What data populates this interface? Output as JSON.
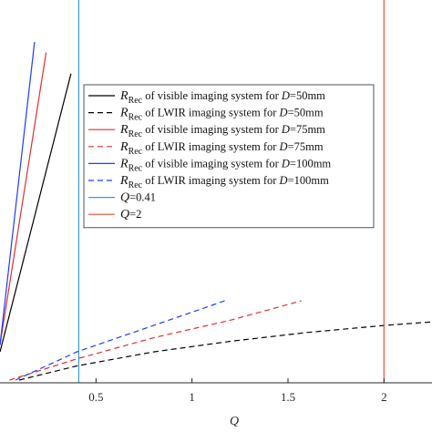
{
  "chart_data": {
    "type": "line",
    "title": "",
    "xlabel": "Q",
    "ylabel": "",
    "xlim": [
      0,
      2.25
    ],
    "x_ticks": [
      "0.5",
      "1",
      "1.5",
      "2"
    ],
    "x_tick_values": [
      0.5,
      1,
      1.5,
      2
    ],
    "grid": false,
    "legend_placement": "top-right",
    "series": [
      {
        "name": "R_Rec of visible imaging system for D=50mm",
        "legend": {
          "sym": "R",
          "sub": "Rec",
          "text": " of visible imaging system for ",
          "var": "D",
          "val": "=50mm"
        },
        "color": "#000000",
        "dash": "solid",
        "points": [
          [
            0.0,
            0.08
          ],
          [
            0.37,
            0.87
          ]
        ]
      },
      {
        "name": "R_Rec of LWIR imaging system for D=50mm",
        "legend": {
          "sym": "R",
          "sub": "Rec",
          "text": " of LWIR imaging system for ",
          "var": "D",
          "val": "=50mm"
        },
        "color": "#000000",
        "dash": "dashed",
        "points": [
          [
            0.1,
            0.0
          ],
          [
            0.4,
            0.04
          ],
          [
            0.8,
            0.08
          ],
          [
            1.2,
            0.11
          ],
          [
            1.6,
            0.135
          ],
          [
            2.0,
            0.155
          ],
          [
            2.25,
            0.165
          ]
        ]
      },
      {
        "name": "R_Rec of visible imaging system for D=75mm",
        "legend": {
          "sym": "R",
          "sub": "Rec",
          "text": " of visible imaging system for ",
          "var": "D",
          "val": "=75mm"
        },
        "color": "#e0302c",
        "dash": "solid",
        "points": [
          [
            0.0,
            0.1
          ],
          [
            0.24,
            0.93
          ]
        ]
      },
      {
        "name": "R_Rec of LWIR imaging system for D=75mm",
        "legend": {
          "sym": "R",
          "sub": "Rec",
          "text": " of LWIR imaging system for ",
          "var": "D",
          "val": "=75mm"
        },
        "color": "#e0302c",
        "dash": "dashed",
        "points": [
          [
            0.05,
            0.0
          ],
          [
            0.4,
            0.06
          ],
          [
            0.8,
            0.12
          ],
          [
            1.2,
            0.17
          ],
          [
            1.57,
            0.225
          ]
        ]
      },
      {
        "name": "R_Rec of visible imaging system for D=100mm",
        "legend": {
          "sym": "R",
          "sub": "Rec",
          "text": " of visible imaging system for ",
          "var": "D",
          "val": "=100mm"
        },
        "color": "#1f3cff",
        "dash": "solid",
        "points": [
          [
            0.0,
            0.1
          ],
          [
            0.18,
            0.96
          ]
        ]
      },
      {
        "name": "R_Rec of LWIR imaging system for D=100mm",
        "legend": {
          "sym": "R",
          "sub": "Rec",
          "text": " of LWIR imaging system for ",
          "var": "D",
          "val": "=100mm"
        },
        "color": "#1f3cff",
        "dash": "dashed",
        "points": [
          [
            0.08,
            0.0
          ],
          [
            0.4,
            0.08
          ],
          [
            0.8,
            0.155
          ],
          [
            1.17,
            0.225
          ]
        ]
      },
      {
        "name": "Q=0.41",
        "legend": {
          "sym": "Q",
          "sub": "",
          "text": "=0.41",
          "var": "",
          "val": ""
        },
        "color": "#3a9ad9",
        "dash": "solid",
        "points": [
          [
            0.41,
            0.0
          ],
          [
            0.41,
            1.0
          ]
        ]
      },
      {
        "name": "Q=2",
        "legend": {
          "sym": "Q",
          "sub": "",
          "text": "=2",
          "var": "",
          "val": ""
        },
        "color": "#e2522f",
        "dash": "solid",
        "points": [
          [
            2.0,
            0.0
          ],
          [
            2.0,
            1.0
          ]
        ]
      }
    ]
  }
}
